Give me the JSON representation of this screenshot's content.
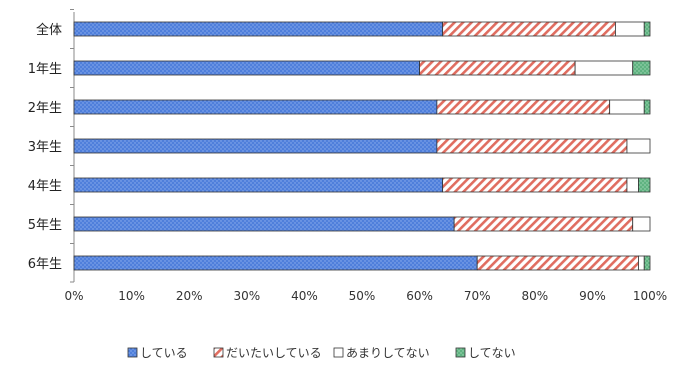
{
  "chart_data": {
    "type": "bar",
    "orientation": "horizontal",
    "stacked": true,
    "categories": [
      "全体",
      "1年生",
      "2年生",
      "3年生",
      "4年生",
      "5年生",
      "6年生"
    ],
    "series": [
      {
        "name": "している",
        "values": [
          64,
          60,
          63,
          63,
          64,
          66,
          70
        ],
        "color": "#4f7fdb",
        "pattern": "dotted"
      },
      {
        "name": "だいたいしている",
        "values": [
          30,
          27,
          30,
          33,
          32,
          31,
          28
        ],
        "color": "#e06d60",
        "pattern": "diagonal-hatch"
      },
      {
        "name": "あまりしてない",
        "values": [
          5,
          10,
          6,
          4,
          2,
          3,
          1
        ],
        "color": "#ffffff",
        "pattern": "solid"
      },
      {
        "name": "してない",
        "values": [
          1,
          3,
          1,
          0,
          2,
          0,
          1
        ],
        "color": "#5fb381",
        "pattern": "dotted"
      }
    ],
    "x_ticks": [
      "0%",
      "10%",
      "20%",
      "30%",
      "40%",
      "50%",
      "60%",
      "70%",
      "80%",
      "90%",
      "100%"
    ],
    "xlim": [
      0,
      100
    ],
    "grid": false,
    "legend_position": "bottom"
  }
}
